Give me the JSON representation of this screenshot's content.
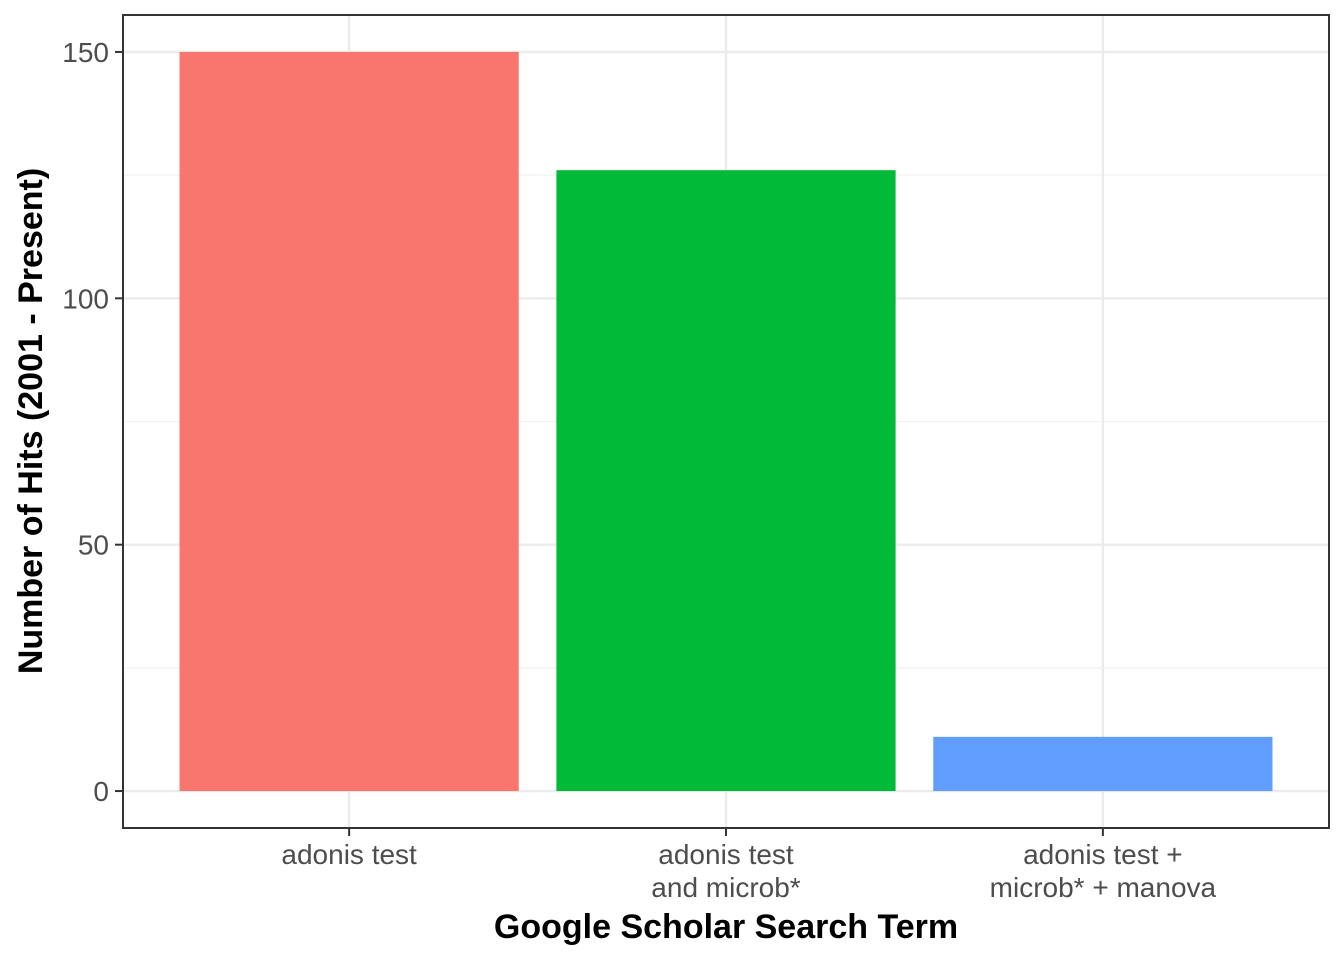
{
  "chart_data": {
    "type": "bar",
    "categories": [
      [
        "adonis test"
      ],
      [
        "adonis test",
        "and microb*"
      ],
      [
        "adonis test +",
        "microb* + manova"
      ]
    ],
    "values": [
      150,
      126,
      11
    ],
    "colors": [
      "#F8766D",
      "#00BA38",
      "#619CFF"
    ],
    "xlabel": "Google Scholar Search Term",
    "ylabel": "Number of Hits (2001 - Present)",
    "ylim": [
      -7.5,
      157.5
    ],
    "yticks": [
      0,
      50,
      100,
      150
    ],
    "grid": true,
    "legend": "none",
    "theme": "bw"
  }
}
